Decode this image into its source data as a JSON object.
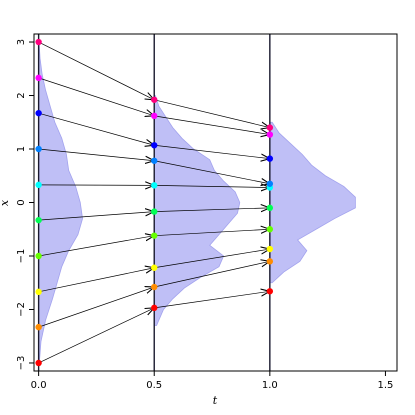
{
  "chart_data": {
    "type": "line",
    "title": "",
    "xlabel": "t",
    "ylabel": "x",
    "xlim": [
      -0.02,
      1.55
    ],
    "ylim": [
      -3.15,
      3.15
    ],
    "xticks": [
      "0.0",
      "0.5",
      "1.0",
      "1.5"
    ],
    "yticks": [
      "-3",
      "-2",
      "-1",
      "0",
      "1",
      "2",
      "3"
    ],
    "grid": false,
    "legend": "none",
    "time_slices": [
      0,
      0.5,
      1
    ],
    "density_color": "#bcbcf6",
    "density_edge_color": "#a3a3ee",
    "line_color": "#000000",
    "slice_line_color": "#1a1a2e",
    "densities": [
      {
        "t": 0,
        "x": [
          -3.0,
          -2.6,
          -2.2,
          -1.8,
          -1.5,
          -1.2,
          -0.9,
          -0.6,
          -0.3,
          0.0,
          0.3,
          0.6,
          0.9,
          1.2,
          1.5,
          1.8,
          2.1,
          2.4,
          2.7,
          3.0
        ],
        "width": [
          0.003,
          0.01,
          0.03,
          0.06,
          0.08,
          0.1,
          0.13,
          0.17,
          0.19,
          0.18,
          0.16,
          0.13,
          0.12,
          0.1,
          0.07,
          0.05,
          0.03,
          0.015,
          0.006,
          0.002
        ]
      },
      {
        "t": 0.5,
        "x": [
          -2.3,
          -2.0,
          -1.8,
          -1.6,
          -1.4,
          -1.2,
          -1.0,
          -0.8,
          -0.6,
          -0.4,
          -0.2,
          0.0,
          0.2,
          0.4,
          0.6,
          0.8,
          1.0,
          1.2,
          1.4,
          1.6,
          1.8,
          2.0
        ],
        "width": [
          0.01,
          0.04,
          0.08,
          0.13,
          0.2,
          0.28,
          0.3,
          0.24,
          0.28,
          0.32,
          0.36,
          0.37,
          0.35,
          0.3,
          0.26,
          0.24,
          0.17,
          0.12,
          0.08,
          0.05,
          0.02,
          0.005
        ]
      },
      {
        "t": 1,
        "x": [
          -1.5,
          -1.3,
          -1.1,
          -0.9,
          -0.7,
          -0.5,
          -0.3,
          -0.1,
          0.1,
          0.3,
          0.5,
          0.7,
          0.9,
          1.1,
          1.3,
          1.5
        ],
        "width": [
          0.01,
          0.06,
          0.13,
          0.16,
          0.12,
          0.2,
          0.28,
          0.37,
          0.37,
          0.32,
          0.24,
          0.18,
          0.14,
          0.09,
          0.04,
          0.01
        ]
      }
    ],
    "series": [
      {
        "color": "#ff0000",
        "x": [
          0,
          0.5,
          1
        ],
        "y": [
          -3.0,
          -1.97,
          -1.66
        ]
      },
      {
        "color": "#ff8c00",
        "x": [
          0,
          0.5,
          1
        ],
        "y": [
          -2.33,
          -1.58,
          -1.1
        ]
      },
      {
        "color": "#ffff00",
        "x": [
          0,
          0.5,
          1
        ],
        "y": [
          -1.67,
          -1.22,
          -0.87
        ]
      },
      {
        "color": "#66ff00",
        "x": [
          0,
          0.5,
          1
        ],
        "y": [
          -1.0,
          -0.62,
          -0.5
        ]
      },
      {
        "color": "#00ff55",
        "x": [
          0,
          0.5,
          1
        ],
        "y": [
          -0.33,
          -0.17,
          -0.1
        ]
      },
      {
        "color": "#00ffff",
        "x": [
          0,
          0.5,
          1
        ],
        "y": [
          0.33,
          0.32,
          0.28
        ]
      },
      {
        "color": "#0080ff",
        "x": [
          0,
          0.5,
          1
        ],
        "y": [
          1.0,
          0.78,
          0.35
        ]
      },
      {
        "color": "#0000ff",
        "x": [
          0,
          0.5,
          1
        ],
        "y": [
          1.67,
          1.07,
          0.82
        ]
      },
      {
        "color": "#ff00ff",
        "x": [
          0,
          0.5,
          1
        ],
        "y": [
          2.33,
          1.62,
          1.27
        ]
      },
      {
        "color": "#ff0080",
        "x": [
          0,
          0.5,
          1
        ],
        "y": [
          3.0,
          1.92,
          1.4
        ]
      }
    ]
  }
}
